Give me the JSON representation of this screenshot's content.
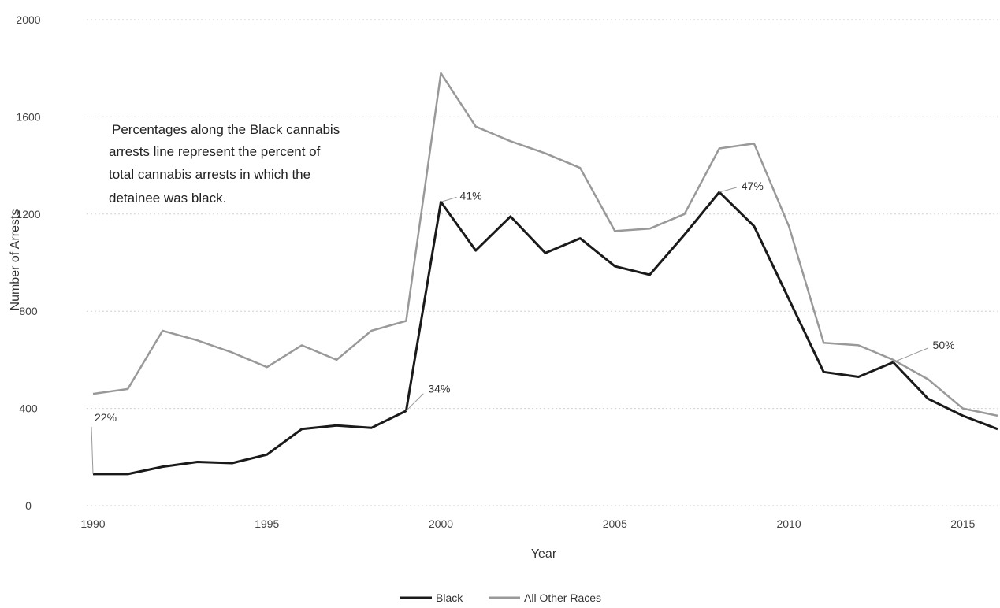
{
  "chart_data": {
    "type": "line",
    "title": "",
    "xlabel": "Year",
    "ylabel": "Number of Arrests",
    "xlim": [
      1990,
      2016
    ],
    "ylim": [
      0,
      2000
    ],
    "y_ticks": [
      0,
      400,
      800,
      1200,
      1600,
      2000
    ],
    "y_tick_labels": [
      "0",
      "400",
      "800",
      "1200",
      "1600",
      "2000"
    ],
    "x_ticks": [
      1990,
      1995,
      2000,
      2005,
      2010,
      2015
    ],
    "x_tick_labels": [
      "1990",
      "1995",
      "2000",
      "2005",
      "2010",
      "2015"
    ],
    "grid": true,
    "legend_position": "bottom-center",
    "x": [
      1990,
      1991,
      1992,
      1993,
      1994,
      1995,
      1996,
      1997,
      1998,
      1999,
      2000,
      2001,
      2002,
      2003,
      2004,
      2005,
      2006,
      2007,
      2008,
      2009,
      2010,
      2011,
      2012,
      2013,
      2014,
      2015,
      2016
    ],
    "series": [
      {
        "name": "Black",
        "color": "#1a1a1a",
        "values": [
          130,
          130,
          160,
          180,
          175,
          210,
          315,
          330,
          320,
          390,
          1250,
          1050,
          1190,
          1040,
          1100,
          985,
          950,
          1115,
          1290,
          1150,
          850,
          550,
          530,
          590,
          440,
          370,
          315
        ]
      },
      {
        "name": "All Other Races",
        "color": "#999999",
        "values": [
          460,
          480,
          720,
          680,
          630,
          570,
          660,
          600,
          720,
          760,
          1780,
          1560,
          1500,
          1450,
          1390,
          1130,
          1140,
          1200,
          1470,
          1490,
          1150,
          670,
          660,
          600,
          520,
          400,
          370
        ]
      }
    ],
    "annotations": [
      {
        "year": 1990,
        "series": "Black",
        "text": "22%"
      },
      {
        "year": 1999,
        "series": "Black",
        "text": "34%"
      },
      {
        "year": 2000,
        "series": "Black",
        "text": "41%"
      },
      {
        "year": 2008,
        "series": "Black",
        "text": "47%"
      },
      {
        "year": 2013,
        "series": "Black",
        "text": "50%"
      }
    ],
    "note": {
      "lines": [
        "Percentages along the Black cannabis",
        "arrests line represent the percent of",
        "total cannabis arrests in which the",
        "detainee was black."
      ]
    }
  }
}
